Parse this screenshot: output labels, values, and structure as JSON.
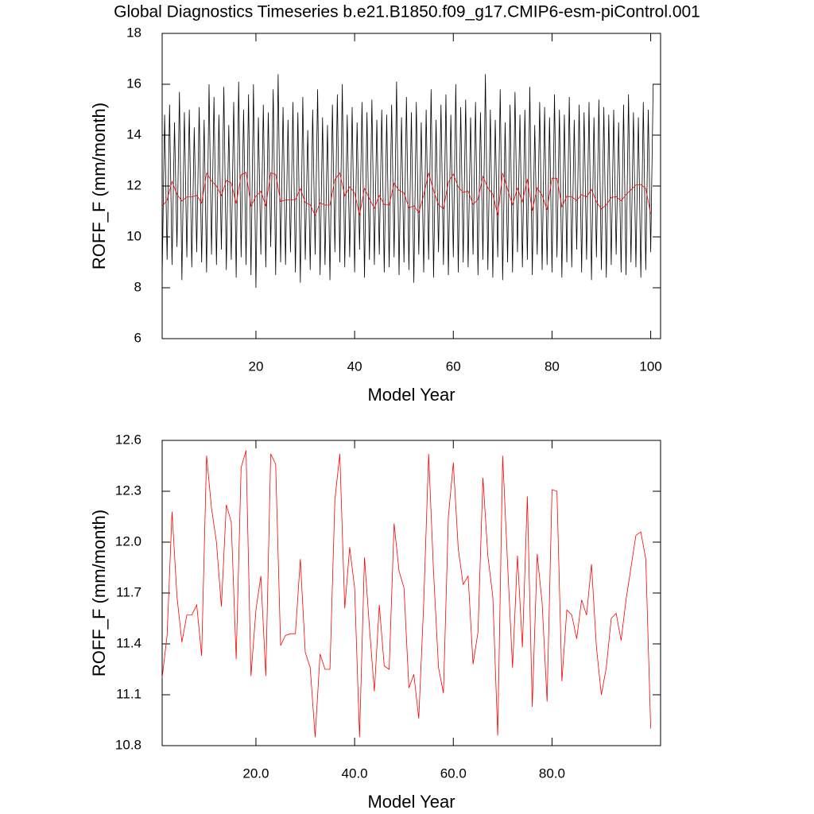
{
  "chart_data": [
    {
      "type": "line",
      "title": "Global Diagnostics Timeseries b.e21.B1850.f09_g17.CMIP6-esm-piControl.001",
      "x_label": "Model Year",
      "y_label": "ROFF_F (mm/month)",
      "xlim": [
        1,
        102
      ],
      "xticks": [
        20,
        40,
        60,
        80,
        100
      ],
      "ylim": [
        6,
        18
      ],
      "yticks": [
        6,
        8,
        10,
        12,
        14,
        16,
        18
      ],
      "series": [
        {
          "color": "#000000",
          "x": [
            1,
            1.5,
            2,
            2.5,
            3,
            3.5,
            4,
            4.5,
            5,
            5.5,
            6,
            6.5,
            7,
            7.5,
            8,
            8.5,
            9,
            9.5,
            10,
            10.5,
            11,
            11.5,
            12,
            12.5,
            13,
            13.5,
            14,
            14.5,
            15,
            15.5,
            16,
            16.5,
            17,
            17.5,
            18,
            18.5,
            19,
            19.5,
            20,
            20.5,
            21,
            21.5,
            22,
            22.5,
            23,
            23.5,
            24,
            24.5,
            25,
            25.5,
            26,
            26.5,
            27,
            27.5,
            28,
            28.5,
            29,
            29.5,
            30,
            30.5,
            31,
            31.5,
            32,
            32.5,
            33,
            33.5,
            34,
            34.5,
            35,
            35.5,
            36,
            36.5,
            37,
            37.5,
            38,
            38.5,
            39,
            39.5,
            40,
            40.5,
            41,
            41.5,
            42,
            42.5,
            43,
            43.5,
            44,
            44.5,
            45,
            45.5,
            46,
            46.5,
            47,
            47.5,
            48,
            48.5,
            49,
            49.5,
            50,
            50.5,
            51,
            51.5,
            52,
            52.5,
            53,
            53.5,
            54,
            54.5,
            55,
            55.5,
            56,
            56.5,
            57,
            57.5,
            58,
            58.5,
            59,
            59.5,
            60,
            60.5,
            61,
            61.5,
            62,
            62.5,
            63,
            63.5,
            64,
            64.5,
            65,
            65.5,
            66,
            66.5,
            67,
            67.5,
            68,
            68.5,
            69,
            69.5,
            70,
            70.5,
            71,
            71.5,
            72,
            72.5,
            73,
            73.5,
            74,
            74.5,
            75,
            75.5,
            76,
            76.5,
            77,
            77.5,
            78,
            78.5,
            79,
            79.5,
            80,
            80.5,
            81,
            81.5,
            82,
            82.5,
            83,
            83.5,
            84,
            84.5,
            85,
            85.5,
            86,
            86.5,
            87,
            87.5,
            88,
            88.5,
            89,
            89.5,
            90,
            90.5,
            91,
            91.5,
            92,
            92.5,
            93,
            93.5,
            94,
            94.5,
            95,
            95.5,
            96,
            96.5,
            97,
            97.5,
            98,
            98.5,
            99,
            99.5,
            100,
            100.5
          ],
          "values": [
            8.4,
            14.8,
            9.1,
            15.2,
            8.9,
            14.5,
            9.6,
            15.7,
            8.3,
            14.9,
            9.2,
            15.0,
            8.8,
            14.3,
            9.4,
            15.1,
            9.0,
            14.6,
            8.6,
            16.0,
            9.3,
            15.5,
            8.9,
            14.8,
            9.5,
            15.9,
            8.7,
            14.4,
            9.1,
            15.3,
            8.4,
            16.1,
            9.2,
            15.0,
            8.9,
            15.6,
            8.5,
            16.0,
            8.0,
            14.7,
            9.3,
            15.2,
            8.8,
            14.9,
            9.6,
            15.8,
            8.5,
            16.4,
            9.0,
            15.1,
            8.9,
            14.6,
            9.4,
            15.3,
            8.6,
            14.9,
            8.2,
            15.5,
            9.1,
            14.2,
            8.7,
            15.0,
            9.3,
            15.8,
            8.5,
            14.7,
            8.9,
            14.4,
            8.3,
            15.2,
            9.4,
            15.6,
            9.0,
            16.0,
            8.8,
            14.8,
            9.2,
            15.1,
            8.6,
            14.5,
            9.5,
            15.3,
            8.4,
            14.9,
            9.1,
            15.4,
            8.9,
            14.6,
            9.3,
            15.0,
            8.6,
            14.8,
            8.8,
            15.2,
            9.2,
            16.1,
            8.5,
            14.7,
            9.0,
            15.5,
            8.7,
            14.9,
            8.2,
            15.3,
            9.3,
            14.5,
            8.6,
            15.0,
            9.1,
            15.8,
            8.4,
            14.6,
            9.4,
            15.2,
            8.9,
            15.6,
            8.5,
            14.8,
            9.2,
            16.0,
            8.6,
            15.1,
            9.0,
            15.4,
            8.8,
            14.7,
            9.3,
            15.3,
            8.5,
            14.9,
            9.1,
            16.4,
            8.7,
            15.0,
            8.4,
            14.6,
            9.2,
            15.8,
            8.3,
            14.5,
            9.0,
            15.2,
            8.6,
            15.7,
            9.4,
            14.8,
            8.8,
            15.0,
            9.1,
            15.9,
            8.5,
            14.4,
            9.3,
            15.3,
            8.7,
            15.1,
            8.9,
            14.7,
            8.6,
            15.6,
            9.2,
            15.0,
            8.4,
            14.8,
            9.0,
            15.5,
            8.8,
            14.6,
            9.5,
            15.2,
            8.6,
            14.9,
            9.1,
            15.3,
            8.3,
            14.7,
            9.2,
            15.4,
            8.7,
            15.1,
            8.4,
            14.8,
            8.9,
            15.0,
            9.3,
            14.5,
            8.6,
            15.2,
            8.5,
            15.6,
            9.0,
            14.9,
            8.8,
            14.7,
            8.4,
            15.3,
            8.7,
            15.0,
            9.4,
            16.0
          ]
        },
        {
          "color": "#ff0000",
          "x": [
            1,
            2,
            3,
            4,
            5,
            6,
            7,
            8,
            9,
            10,
            11,
            12,
            13,
            14,
            15,
            16,
            17,
            18,
            19,
            20,
            21,
            22,
            23,
            24,
            25,
            26,
            27,
            28,
            29,
            30,
            31,
            32,
            33,
            34,
            35,
            36,
            37,
            38,
            39,
            40,
            41,
            42,
            43,
            44,
            45,
            46,
            47,
            48,
            49,
            50,
            51,
            52,
            53,
            54,
            55,
            56,
            57,
            58,
            59,
            60,
            61,
            62,
            63,
            64,
            65,
            66,
            67,
            68,
            69,
            70,
            71,
            72,
            73,
            74,
            75,
            76,
            77,
            78,
            79,
            80,
            81,
            82,
            83,
            84,
            85,
            86,
            87,
            88,
            89,
            90,
            91,
            92,
            93,
            94,
            95,
            96,
            97,
            98,
            99,
            100
          ],
          "values": [
            11.2,
            11.45,
            12.18,
            11.68,
            11.41,
            11.57,
            11.57,
            11.63,
            11.33,
            12.51,
            12.2,
            12.0,
            11.62,
            12.22,
            12.12,
            11.31,
            12.44,
            12.54,
            11.21,
            11.6,
            11.8,
            11.21,
            12.52,
            12.46,
            11.39,
            11.45,
            11.46,
            11.46,
            11.9,
            11.35,
            11.26,
            10.85,
            11.34,
            11.25,
            11.25,
            12.25,
            12.52,
            11.61,
            11.97,
            11.73,
            10.85,
            11.91,
            11.5,
            11.12,
            11.63,
            11.27,
            11.25,
            12.11,
            11.83,
            11.73,
            11.14,
            11.22,
            10.96,
            11.64,
            12.52,
            11.82,
            11.26,
            11.11,
            12.15,
            12.47,
            11.96,
            11.75,
            11.8,
            11.28,
            11.47,
            12.38,
            11.92,
            11.68,
            10.86,
            12.51,
            11.87,
            11.26,
            11.92,
            11.38,
            12.27,
            11.03,
            11.93,
            11.64,
            11.06,
            12.31,
            12.3,
            11.18,
            11.6,
            11.57,
            11.43,
            11.66,
            11.57,
            11.87,
            11.38,
            11.1,
            11.26,
            11.55,
            11.58,
            11.42,
            11.66,
            11.85,
            12.04,
            12.06,
            11.9,
            10.9
          ]
        }
      ]
    },
    {
      "type": "line",
      "x_label": "Model Year",
      "y_label": "ROFF_F (mm/month)",
      "xlim": [
        1,
        102
      ],
      "xticks": [
        {
          "value": 20,
          "label": "20.0"
        },
        {
          "value": 40,
          "label": "40.0"
        },
        {
          "value": 60,
          "label": "60.0"
        },
        {
          "value": 80,
          "label": "80.0"
        }
      ],
      "ylim": [
        10.8,
        12.6
      ],
      "yticks": [
        10.8,
        11.1,
        11.4,
        11.7,
        {
          "value": 12,
          "label": "12.0"
        },
        12.3,
        12.6
      ],
      "series": [
        {
          "color": "#ff0000",
          "x": [
            1,
            2,
            3,
            4,
            5,
            6,
            7,
            8,
            9,
            10,
            11,
            12,
            13,
            14,
            15,
            16,
            17,
            18,
            19,
            20,
            21,
            22,
            23,
            24,
            25,
            26,
            27,
            28,
            29,
            30,
            31,
            32,
            33,
            34,
            35,
            36,
            37,
            38,
            39,
            40,
            41,
            42,
            43,
            44,
            45,
            46,
            47,
            48,
            49,
            50,
            51,
            52,
            53,
            54,
            55,
            56,
            57,
            58,
            59,
            60,
            61,
            62,
            63,
            64,
            65,
            66,
            67,
            68,
            69,
            70,
            71,
            72,
            73,
            74,
            75,
            76,
            77,
            78,
            79,
            80,
            81,
            82,
            83,
            84,
            85,
            86,
            87,
            88,
            89,
            90,
            91,
            92,
            93,
            94,
            95,
            96,
            97,
            98,
            99,
            100
          ],
          "values": [
            11.2,
            11.45,
            12.18,
            11.68,
            11.41,
            11.57,
            11.57,
            11.63,
            11.33,
            12.51,
            12.2,
            12.0,
            11.62,
            12.22,
            12.12,
            11.31,
            12.44,
            12.54,
            11.21,
            11.6,
            11.8,
            11.21,
            12.52,
            12.46,
            11.39,
            11.45,
            11.46,
            11.46,
            11.9,
            11.35,
            11.26,
            10.85,
            11.34,
            11.25,
            11.25,
            12.25,
            12.52,
            11.61,
            11.97,
            11.73,
            10.85,
            11.91,
            11.5,
            11.12,
            11.63,
            11.27,
            11.25,
            12.11,
            11.83,
            11.73,
            11.14,
            11.22,
            10.96,
            11.64,
            12.52,
            11.82,
            11.26,
            11.11,
            12.15,
            12.47,
            11.96,
            11.75,
            11.8,
            11.28,
            11.47,
            12.38,
            11.92,
            11.68,
            10.86,
            12.51,
            11.87,
            11.26,
            11.92,
            11.38,
            12.27,
            11.03,
            11.93,
            11.64,
            11.06,
            12.31,
            12.3,
            11.18,
            11.6,
            11.57,
            11.43,
            11.66,
            11.57,
            11.87,
            11.38,
            11.1,
            11.26,
            11.55,
            11.58,
            11.42,
            11.66,
            11.85,
            12.04,
            12.06,
            11.9,
            10.9
          ]
        }
      ]
    }
  ]
}
